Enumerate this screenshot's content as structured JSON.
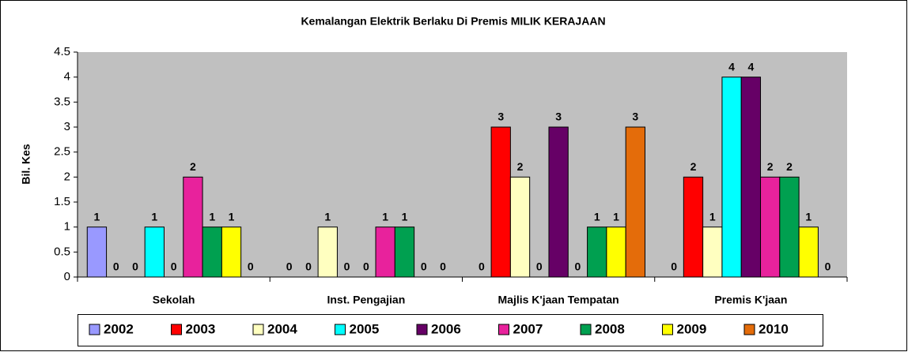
{
  "chart_data": {
    "type": "bar",
    "title": "Kemalangan Elektrik Berlaku Di Premis MILIK KERAJAAN",
    "y_label": "Bil. Kes",
    "categories": [
      "Sekolah",
      "Inst. Pengajian",
      "Majlis K'jaan Tempatan",
      "Premis K'jaan"
    ],
    "series": [
      {
        "name": "2002",
        "color": "#9999ff",
        "values": [
          1,
          0,
          0,
          0
        ]
      },
      {
        "name": "2003",
        "color": "#ff0000",
        "values": [
          0,
          0,
          3,
          2
        ]
      },
      {
        "name": "2004",
        "color": "#ffffc0",
        "values": [
          0,
          1,
          2,
          1
        ]
      },
      {
        "name": "2005",
        "color": "#00ffff",
        "values": [
          1,
          0,
          0,
          4
        ]
      },
      {
        "name": "2006",
        "color": "#660066",
        "values": [
          0,
          0,
          3,
          4
        ]
      },
      {
        "name": "2007",
        "color": "#e8229c",
        "values": [
          2,
          1,
          0,
          2
        ]
      },
      {
        "name": "2008",
        "color": "#00a050",
        "values": [
          1,
          1,
          1,
          2
        ]
      },
      {
        "name": "2009",
        "color": "#ffff00",
        "values": [
          1,
          0,
          1,
          1
        ]
      },
      {
        "name": "2010",
        "color": "#e46c0a",
        "values": [
          0,
          0,
          3,
          0
        ]
      }
    ],
    "ylim": [
      0,
      4.5
    ],
    "yticks": [
      0,
      0.5,
      1,
      1.5,
      2,
      2.5,
      3,
      3.5,
      4,
      4.5
    ],
    "legend": "bottom",
    "grid": false
  }
}
